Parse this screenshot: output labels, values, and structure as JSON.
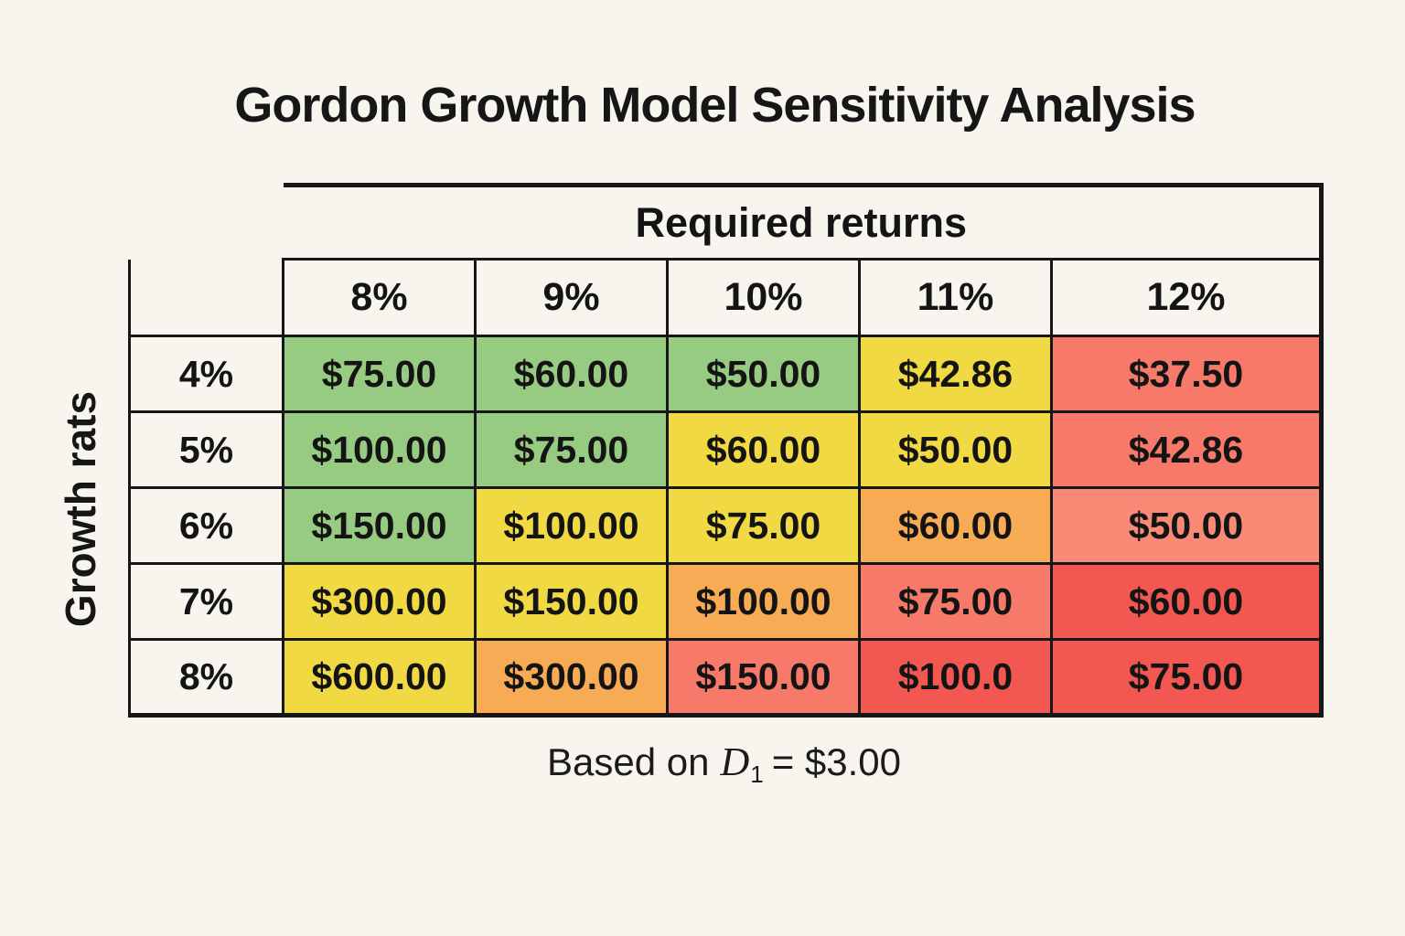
{
  "page_background": "#F8F5EF",
  "title": "Gordon Growth Model Sensitivity Analysis",
  "footnote": {
    "before": "Based on",
    "variable": "D",
    "subscript": "1",
    "after": "= $3.00"
  },
  "colors": {
    "green": "#97CB82",
    "yellow": "#F1D944",
    "orange": "#F6AB54",
    "salmon": "#F7796A",
    "salmon_light": "#F88A76",
    "red": "#F25851",
    "border": "#161616",
    "background": "#F8F5EF"
  },
  "chart_data": {
    "type": "table",
    "title": "Gordon Growth Model Sensitivity Analysis",
    "column_group_label": "Required returns",
    "row_group_label": "Growth rats",
    "columns": [
      "8%",
      "9%",
      "10%",
      "11%",
      "12%"
    ],
    "rows": [
      "4%",
      "5%",
      "6%",
      "7%",
      "8%"
    ],
    "values": [
      [
        "$75.00",
        "$60.00",
        "$50.00",
        "$42.86",
        "$37.50"
      ],
      [
        "$100.00",
        "$75.00",
        "$60.00",
        "$50.00",
        "$42.86"
      ],
      [
        "$150.00",
        "$100.00",
        "$75.00",
        "$60.00",
        "$50.00"
      ],
      [
        "$300.00",
        "$150.00",
        "$100.00",
        "$75.00",
        "$60.00"
      ],
      [
        "$600.00",
        "$300.00",
        "$150.00",
        "$100.0",
        "$75.00"
      ]
    ],
    "cell_colors": [
      [
        "green",
        "green",
        "green",
        "yellow",
        "salmon"
      ],
      [
        "green",
        "green",
        "yellow",
        "yellow",
        "salmon"
      ],
      [
        "green",
        "yellow",
        "yellow",
        "orange",
        "salmon_light"
      ],
      [
        "yellow",
        "yellow",
        "orange",
        "salmon",
        "red"
      ],
      [
        "yellow",
        "orange",
        "salmon",
        "red",
        "red"
      ]
    ],
    "note": "Based on D₁ = $3.00"
  }
}
